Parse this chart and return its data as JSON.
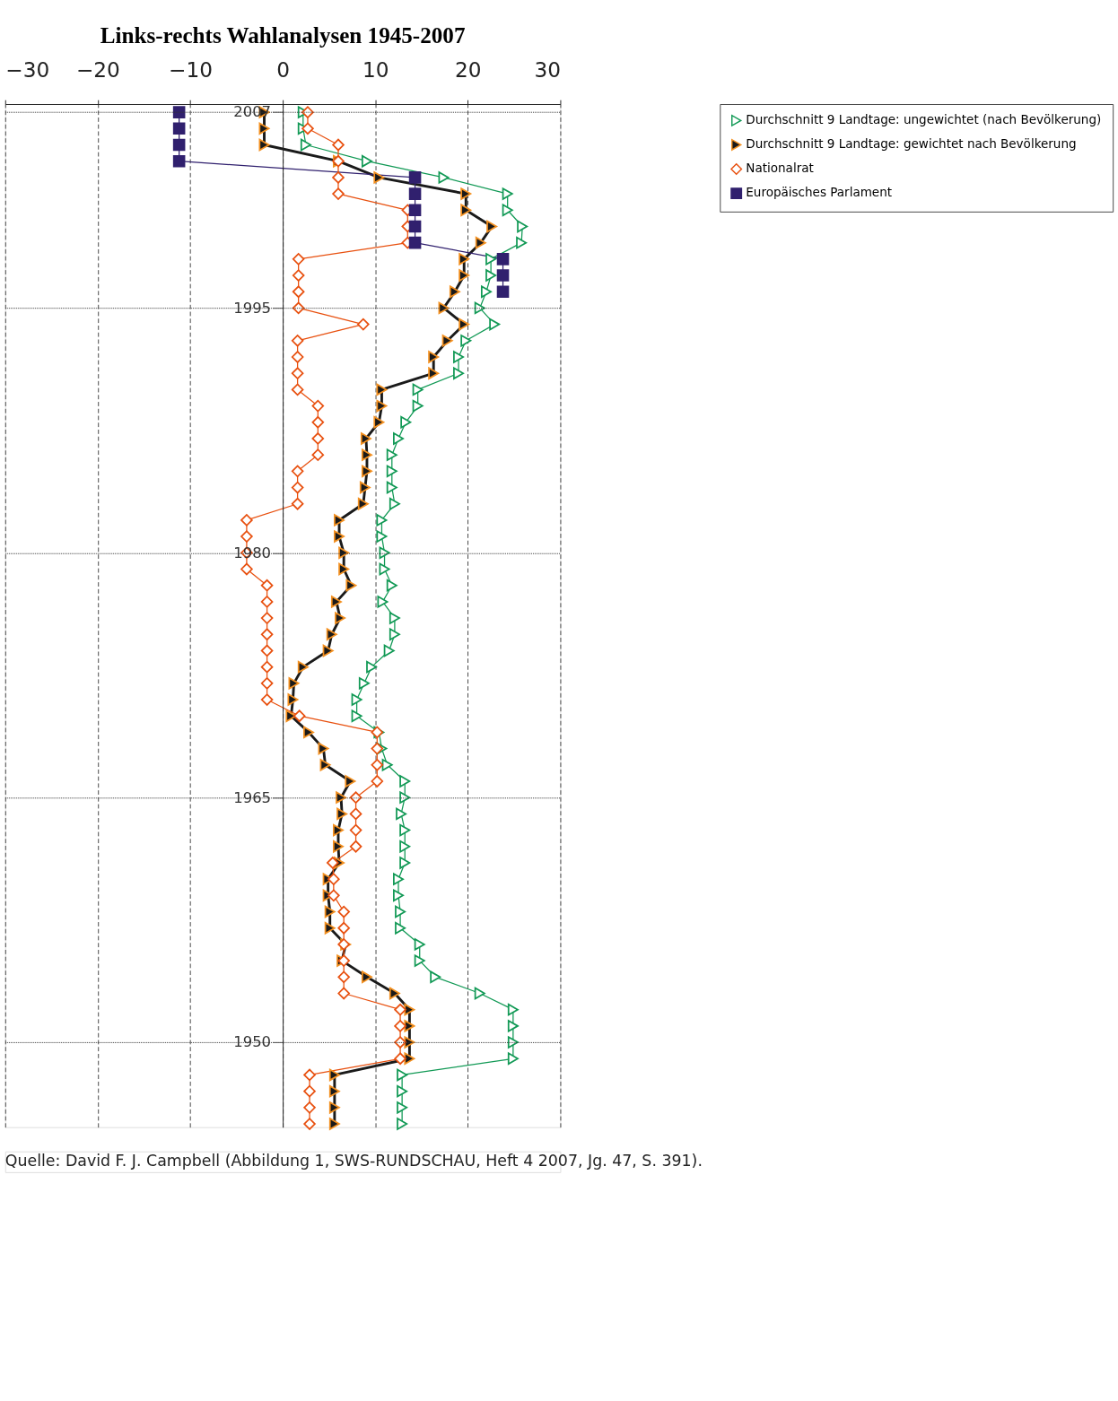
{
  "chart_data": {
    "type": "line",
    "title": "Links-rechts Wahlanalysen 1945-2007",
    "orientation": "horizontal",
    "x": [
      1945,
      1946,
      1947,
      1948,
      1949,
      1950,
      1951,
      1952,
      1953,
      1954,
      1955,
      1956,
      1957,
      1958,
      1959,
      1960,
      1961,
      1962,
      1963,
      1964,
      1965,
      1966,
      1967,
      1968,
      1969,
      1970,
      1971,
      1972,
      1973,
      1974,
      1975,
      1976,
      1977,
      1978,
      1979,
      1980,
      1981,
      1982,
      1983,
      1984,
      1985,
      1986,
      1987,
      1988,
      1989,
      1990,
      1991,
      1992,
      1993,
      1994,
      1995,
      1996,
      1997,
      1998,
      1999,
      2000,
      2001,
      2002,
      2003,
      2004,
      2005,
      2006,
      2007
    ],
    "series": [
      {
        "name": "Durchschnitt 9 Landtage: ungewichtet (nach Bevölkerung)",
        "color": "#119955",
        "marker": "triangle",
        "values": [
          12.9,
          12.9,
          12.9,
          12.9,
          24.9,
          24.9,
          24.9,
          24.9,
          21.3,
          16.5,
          14.8,
          14.8,
          12.7,
          12.7,
          12.5,
          12.5,
          13.2,
          13.2,
          13.2,
          12.8,
          13.2,
          13.2,
          11.3,
          10.7,
          10.4,
          8.0,
          8.0,
          8.8,
          9.6,
          11.5,
          12.1,
          12.1,
          10.8,
          11.8,
          11.0,
          11.0,
          10.7,
          10.7,
          12.1,
          11.8,
          11.8,
          11.8,
          12.5,
          13.3,
          14.6,
          14.6,
          19.0,
          19.0,
          19.8,
          22.9,
          21.3,
          22.0,
          22.5,
          22.5,
          25.8,
          25.9,
          24.3,
          24.3,
          17.4,
          9.1,
          2.5,
          2.2,
          2.2
        ]
      },
      {
        "name": "Durchschnitt 9 Landtage: gewichtet nach Bevölkerung",
        "color": "#1a1a1a",
        "marker": "triangle",
        "values": [
          5.6,
          5.6,
          5.6,
          5.6,
          13.7,
          13.7,
          13.7,
          13.7,
          12.1,
          9.1,
          6.4,
          6.8,
          5.1,
          5.1,
          4.9,
          4.9,
          6.1,
          6.0,
          6.0,
          6.4,
          6.3,
          7.3,
          4.6,
          4.4,
          2.8,
          0.9,
          1.1,
          1.2,
          2.2,
          4.9,
          5.3,
          6.2,
          5.8,
          7.4,
          6.6,
          6.6,
          6.1,
          6.1,
          8.7,
          8.9,
          9.1,
          9.1,
          9.0,
          10.4,
          10.7,
          10.7,
          16.3,
          16.3,
          17.8,
          19.6,
          17.4,
          18.6,
          19.6,
          19.6,
          21.4,
          22.6,
          19.8,
          19.8,
          10.4,
          6.0,
          -2.0,
          -2.0,
          -2.0
        ]
      },
      {
        "name": "Nationalrat",
        "color": "#e8500f",
        "marker": "diamond",
        "values": [
          2.9,
          2.9,
          2.9,
          2.9,
          12.7,
          12.7,
          12.7,
          12.7,
          6.6,
          6.6,
          6.6,
          6.6,
          6.6,
          6.6,
          5.5,
          5.5,
          5.4,
          7.9,
          7.9,
          7.9,
          7.9,
          10.2,
          10.2,
          10.2,
          10.2,
          1.8,
          -1.7,
          -1.7,
          -1.7,
          -1.7,
          -1.7,
          -1.7,
          -1.7,
          -1.7,
          -3.9,
          -3.9,
          -3.9,
          -3.9,
          1.6,
          1.6,
          1.6,
          3.8,
          3.8,
          3.8,
          3.8,
          1.6,
          1.6,
          1.6,
          1.6,
          8.7,
          1.7,
          1.7,
          1.7,
          1.7,
          13.5,
          13.5,
          13.5,
          6.0,
          6.0,
          6.0,
          6.0,
          2.7,
          2.7
        ]
      },
      {
        "name": "Europäisches Parlament",
        "color": "#30206e",
        "marker": "square",
        "x": [
          1996,
          1997,
          1998,
          1999,
          2000,
          2001,
          2002,
          2003,
          2004,
          2005,
          2006,
          2007
        ],
        "values": [
          23.8,
          23.8,
          23.8,
          14.3,
          14.3,
          14.3,
          14.3,
          14.3,
          -11.2,
          -11.2,
          -11.2,
          -11.2
        ]
      }
    ],
    "xlim": [
      -30,
      30
    ],
    "xticks": [
      -30,
      -20,
      -10,
      0,
      10,
      20,
      30
    ],
    "ylim": [
      1944.8,
      2007.5
    ],
    "yticks": [
      1950,
      1965,
      1980,
      1995,
      2007
    ],
    "grid": true,
    "legend": "right",
    "line_style": "solid",
    "annotations": [
      "Quelle: David F. J. Campbell (Abbildung 1, SWS-RUNDSCHAU, Heft 4 2007, Jg. 47, S. 391)."
    ]
  }
}
